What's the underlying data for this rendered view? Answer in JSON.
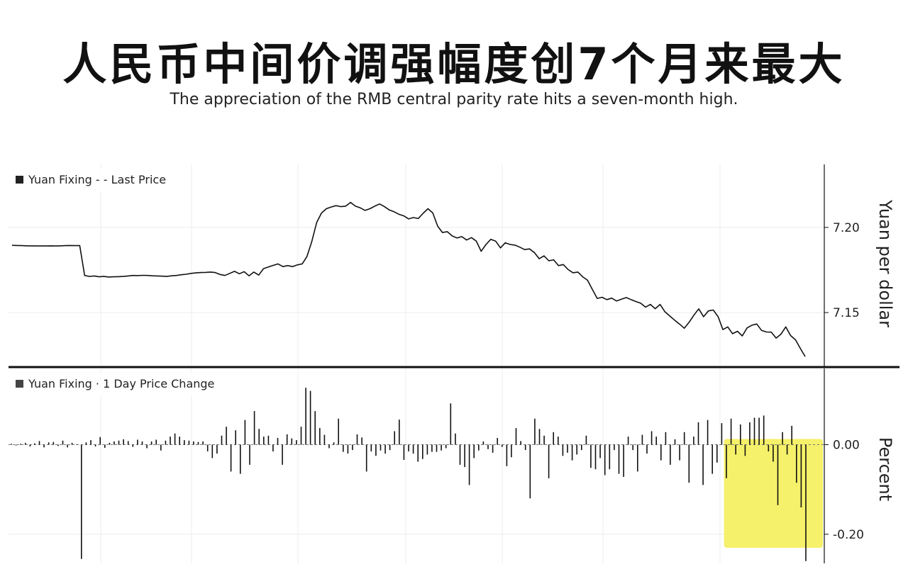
{
  "title": "人民币中间价调强幅度创7个月来最大",
  "subtitle": "The appreciation of the RMB central parity rate hits a seven-month high.",
  "chart_data": [
    {
      "type": "line",
      "legend": "Yuan Fixing  - - Last Price",
      "ylabel": "Yuan per dollar",
      "ylim": [
        7.118,
        7.237
      ],
      "yticks": [
        7.2,
        7.15
      ],
      "ytick_labels": [
        "7.20",
        "7.15"
      ],
      "grid": true,
      "series": [
        {
          "name": "Last Price",
          "values": [
            7.1895,
            7.1894,
            7.1893,
            7.1892,
            7.1892,
            7.1891,
            7.1891,
            7.1891,
            7.1892,
            7.1891,
            7.1892,
            7.1893,
            7.1894,
            7.1893,
            7.1893,
            7.1718,
            7.1712,
            7.1715,
            7.171,
            7.1712,
            7.1709,
            7.171,
            7.1711,
            7.1712,
            7.1715,
            7.1718,
            7.1717,
            7.1719,
            7.1718,
            7.1716,
            7.1715,
            7.1714,
            7.1712,
            7.1716,
            7.1718,
            7.1722,
            7.1725,
            7.173,
            7.1733,
            7.1735,
            7.1736,
            7.1738,
            7.1735,
            7.1724,
            7.1718,
            7.173,
            7.1742,
            7.1728,
            7.174,
            7.1716,
            7.1738,
            7.172,
            7.1758,
            7.1768,
            7.1777,
            7.1786,
            7.177,
            7.1776,
            7.177,
            7.178,
            7.1786,
            7.183,
            7.192,
            7.203,
            7.2085,
            7.211,
            7.212,
            7.2128,
            7.2122,
            7.2125,
            7.2147,
            7.2125,
            7.2115,
            7.21,
            7.211,
            7.2125,
            7.2138,
            7.2122,
            7.2103,
            7.2092,
            7.2077,
            7.2068,
            7.205,
            7.2058,
            7.2052,
            7.2083,
            7.211,
            7.2085,
            7.2008,
            7.197,
            7.1975,
            7.195,
            7.1938,
            7.1946,
            7.1926,
            7.194,
            7.192,
            7.186,
            7.19,
            7.193,
            7.192,
            7.188,
            7.191,
            7.19,
            7.1896,
            7.1884,
            7.187,
            7.1874,
            7.1853,
            7.1816,
            7.1833,
            7.1804,
            7.181,
            7.1776,
            7.1782,
            7.1752,
            7.1734,
            7.1738,
            7.171,
            7.169,
            7.1636,
            7.1583,
            7.159,
            7.1576,
            7.1585,
            7.1568,
            7.1578,
            7.1588,
            7.1576,
            7.1565,
            7.1555,
            7.1532,
            7.1548,
            7.1523,
            7.1548,
            7.1505,
            7.148,
            7.1456,
            7.1433,
            7.1408,
            7.1443,
            7.1485,
            7.1522,
            7.1476,
            7.151,
            7.1515,
            7.1476,
            7.14,
            7.1416,
            7.1376,
            7.139,
            7.1363,
            7.141,
            7.1426,
            7.1433,
            7.1395,
            7.1386,
            7.1385,
            7.135,
            7.1373,
            7.1416,
            7.1365,
            7.134,
            7.129,
            7.1242
          ]
        }
      ]
    },
    {
      "type": "bar",
      "legend": "Yuan Fixing  · 1 Day Price Change",
      "ylabel": "Percent",
      "ylim": [
        -0.265,
        0.17
      ],
      "yticks": [
        0.0,
        -0.2
      ],
      "ytick_labels": [
        "0.00",
        "-0.20"
      ],
      "grid": true,
      "highlight": {
        "from_index": 154,
        "color": "#f4f05a"
      },
      "series": [
        {
          "name": "1 Day Price Change",
          "values": [
            0.002,
            -0.002,
            0.002,
            0.004,
            -0.004,
            0.003,
            0.008,
            -0.006,
            0.005,
            0.006,
            -0.003,
            0.009,
            -0.006,
            0.004,
            0.001,
            -0.255,
            0.005,
            0.01,
            -0.004,
            0.017,
            -0.007,
            0.004,
            0.007,
            0.009,
            0.012,
            0.008,
            -0.005,
            0.011,
            0.007,
            -0.008,
            0.007,
            0.011,
            -0.013,
            0.009,
            0.018,
            0.025,
            0.018,
            0.01,
            0.009,
            0.007,
            0.006,
            0.007,
            -0.015,
            -0.03,
            -0.02,
            0.02,
            0.04,
            -0.06,
            0.032,
            -0.065,
            0.055,
            -0.045,
            0.075,
            0.035,
            0.018,
            0.02,
            -0.015,
            0.015,
            -0.045,
            0.023,
            0.014,
            0.01,
            0.04,
            0.127,
            0.12,
            0.075,
            0.037,
            0.022,
            -0.008,
            0.005,
            0.058,
            -0.016,
            -0.02,
            -0.012,
            0.023,
            0.016,
            -0.06,
            -0.015,
            -0.025,
            -0.013,
            -0.02,
            -0.012,
            0.03,
            0.056,
            -0.034,
            -0.015,
            -0.02,
            -0.038,
            -0.032,
            -0.022,
            -0.016,
            -0.016,
            -0.013,
            -0.008,
            0.092,
            0.025,
            -0.045,
            -0.05,
            -0.09,
            -0.03,
            -0.013,
            0.007,
            -0.01,
            -0.018,
            0.015,
            -0.005,
            -0.048,
            -0.028,
            0.037,
            0.008,
            -0.012,
            -0.12,
            0.058,
            0.035,
            0.02,
            -0.075,
            0.028,
            0.018,
            -0.025,
            -0.018,
            -0.035,
            -0.022,
            -0.012,
            0.02,
            -0.052,
            -0.055,
            -0.03,
            -0.068,
            -0.055,
            -0.012,
            -0.065,
            -0.072,
            0.018,
            -0.012,
            -0.06,
            0.022,
            -0.02,
            0.03,
            0.018,
            -0.035,
            0.028,
            -0.045,
            0.012,
            -0.035,
            0.028,
            -0.085,
            0.018,
            0.05,
            -0.09,
            0.055,
            -0.065,
            -0.04,
            0.048,
            -0.075,
            0.058,
            -0.022,
            0.045,
            -0.025,
            0.05,
            0.06,
            0.06,
            0.065,
            -0.015,
            -0.038,
            -0.135,
            0.028,
            -0.022,
            0.042,
            -0.085,
            -0.14,
            -0.26
          ]
        }
      ]
    }
  ]
}
